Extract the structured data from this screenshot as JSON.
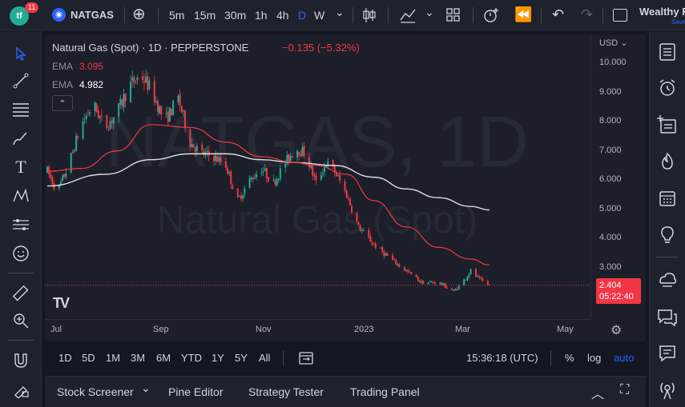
{
  "topbar": {
    "badge_text": "tf",
    "notification_count": "11",
    "symbol_icon": "◉",
    "symbol": "NATGAS",
    "add_symbol": "⊕",
    "intervals": [
      "5m",
      "15m",
      "30m",
      "1h",
      "4h",
      "D",
      "W"
    ],
    "active_interval": "D",
    "interval_dropdown": "⌄",
    "candle_icon": "candles-icon",
    "indicators_icon": "indicators-icon",
    "layout_icon": "grid-icon",
    "alert_icon": "alarm-add-icon",
    "replay_icon": "replay-icon",
    "undo": "↶",
    "redo": "↷",
    "brand": "Wealthy F",
    "brand_sub": "Save"
  },
  "left_toolbar": [
    "cursor-icon",
    "trendline-icon",
    "fib-icon",
    "brush-icon",
    "text-icon",
    "pattern-icon",
    "forecast-icon",
    "emoji-icon",
    "ruler-icon",
    "zoom-icon",
    "magnet-icon",
    "lock-drawing-icon"
  ],
  "right_toolbar": [
    "watchlist-icon",
    "alerts-icon",
    "data-window-icon",
    "hotlist-icon",
    "calendar-icon",
    "ideas-icon",
    "streams-icon",
    "chat-icon",
    "notifications-icon",
    "broadcast-icon"
  ],
  "chart": {
    "title": "Natural Gas (Spot) · 1D · PEPPERSTONE",
    "change": "−0.135 (−5.32%)",
    "ema1_label": "EMA",
    "ema1_value": "3.095",
    "ema1_color": "#f23645",
    "ema2_label": "EMA",
    "ema2_value": "4.982",
    "ema2_color": "#ffffff",
    "collapse": "⌃",
    "watermark_symbol": "NATGAS, 1D",
    "watermark_name": "Natural Gas (Spot)",
    "currency": "USD ⌄",
    "last_price": "2.404",
    "countdown": "05:22:40",
    "tv_logo": "TV",
    "settings_icon": "⚙"
  },
  "chart_data": {
    "type": "candlestick",
    "title": "Natural Gas (Spot) · 1D · PEPPERSTONE",
    "x_ticks": [
      "Jul",
      "Sep",
      "Nov",
      "2023",
      "Mar",
      "May"
    ],
    "y_ticks": [
      "10.000",
      "9.000",
      "8.000",
      "7.000",
      "6.000",
      "5.000",
      "4.000",
      "3.000"
    ],
    "ylim": [
      2.0,
      10.3
    ],
    "path_points": [
      [
        "2022-06-27",
        6.3
      ],
      [
        "2022-07-03",
        5.6
      ],
      [
        "2022-07-10",
        6.6
      ],
      [
        "2022-07-17",
        7.9
      ],
      [
        "2022-07-24",
        8.6
      ],
      [
        "2022-07-31",
        7.8
      ],
      [
        "2022-08-07",
        8.3
      ],
      [
        "2022-08-14",
        9.2
      ],
      [
        "2022-08-21",
        9.6
      ],
      [
        "2022-08-27",
        9.1
      ],
      [
        "2022-09-04",
        8.0
      ],
      [
        "2022-09-12",
        8.8
      ],
      [
        "2022-09-19",
        7.3
      ],
      [
        "2022-09-26",
        6.9
      ],
      [
        "2022-10-03",
        6.8
      ],
      [
        "2022-10-10",
        6.5
      ],
      [
        "2022-10-17",
        5.3
      ],
      [
        "2022-10-24",
        6.0
      ],
      [
        "2022-10-31",
        6.4
      ],
      [
        "2022-11-07",
        5.9
      ],
      [
        "2022-11-14",
        6.6
      ],
      [
        "2022-11-20",
        7.1
      ],
      [
        "2022-11-26",
        6.9
      ],
      [
        "2022-12-02",
        5.9
      ],
      [
        "2022-12-08",
        6.6
      ],
      [
        "2022-12-13",
        6.3
      ],
      [
        "2022-12-20",
        5.5
      ],
      [
        "2022-12-27",
        4.4
      ],
      [
        "2023-01-05",
        3.8
      ],
      [
        "2023-01-15",
        3.3
      ],
      [
        "2023-01-24",
        2.9
      ],
      [
        "2023-02-02",
        2.5
      ],
      [
        "2023-02-12",
        2.5
      ],
      [
        "2023-02-21",
        2.2
      ],
      [
        "2023-02-26",
        2.5
      ],
      [
        "2023-03-03",
        2.9
      ],
      [
        "2023-03-08",
        2.6
      ],
      [
        "2023-03-14",
        2.404
      ]
    ],
    "ema_fast": [
      [
        "2022-06-27",
        6.3
      ],
      [
        "2022-07-17",
        6.4
      ],
      [
        "2022-08-07",
        7.0
      ],
      [
        "2022-08-27",
        7.9
      ],
      [
        "2022-09-19",
        7.8
      ],
      [
        "2022-10-10",
        7.3
      ],
      [
        "2022-10-31",
        6.8
      ],
      [
        "2022-11-20",
        6.6
      ],
      [
        "2022-12-02",
        6.5
      ],
      [
        "2022-12-20",
        6.2
      ],
      [
        "2023-01-05",
        5.3
      ],
      [
        "2023-01-24",
        4.4
      ],
      [
        "2023-02-12",
        3.7
      ],
      [
        "2023-03-03",
        3.3
      ],
      [
        "2023-03-14",
        3.095
      ]
    ],
    "ema_slow": [
      [
        "2022-06-27",
        5.8
      ],
      [
        "2022-07-31",
        6.2
      ],
      [
        "2022-08-27",
        6.7
      ],
      [
        "2022-09-19",
        6.9
      ],
      [
        "2022-10-10",
        6.9
      ],
      [
        "2022-10-31",
        6.7
      ],
      [
        "2022-11-20",
        6.6
      ],
      [
        "2022-12-13",
        6.5
      ],
      [
        "2023-01-05",
        6.1
      ],
      [
        "2023-01-24",
        5.7
      ],
      [
        "2023-02-12",
        5.4
      ],
      [
        "2023-03-03",
        5.1
      ],
      [
        "2023-03-14",
        4.982
      ]
    ],
    "last_price": 2.404,
    "grid": false,
    "legend": "top-left"
  },
  "range_bar": {
    "ranges": [
      "1D",
      "5D",
      "1M",
      "3M",
      "6M",
      "YTD",
      "1Y",
      "5Y",
      "All"
    ],
    "compare_icon": "date-range-icon",
    "clock": "15:36:18 (UTC)",
    "percent": "%",
    "log": "log",
    "auto": "auto"
  },
  "bottom_bar": {
    "stock_screener": "Stock Screener",
    "screener_caret": "⌄",
    "pine_editor": "Pine Editor",
    "strategy_tester": "Strategy Tester",
    "trading_panel": "Trading Panel",
    "collapse": "︿",
    "maximize": "⛶"
  }
}
